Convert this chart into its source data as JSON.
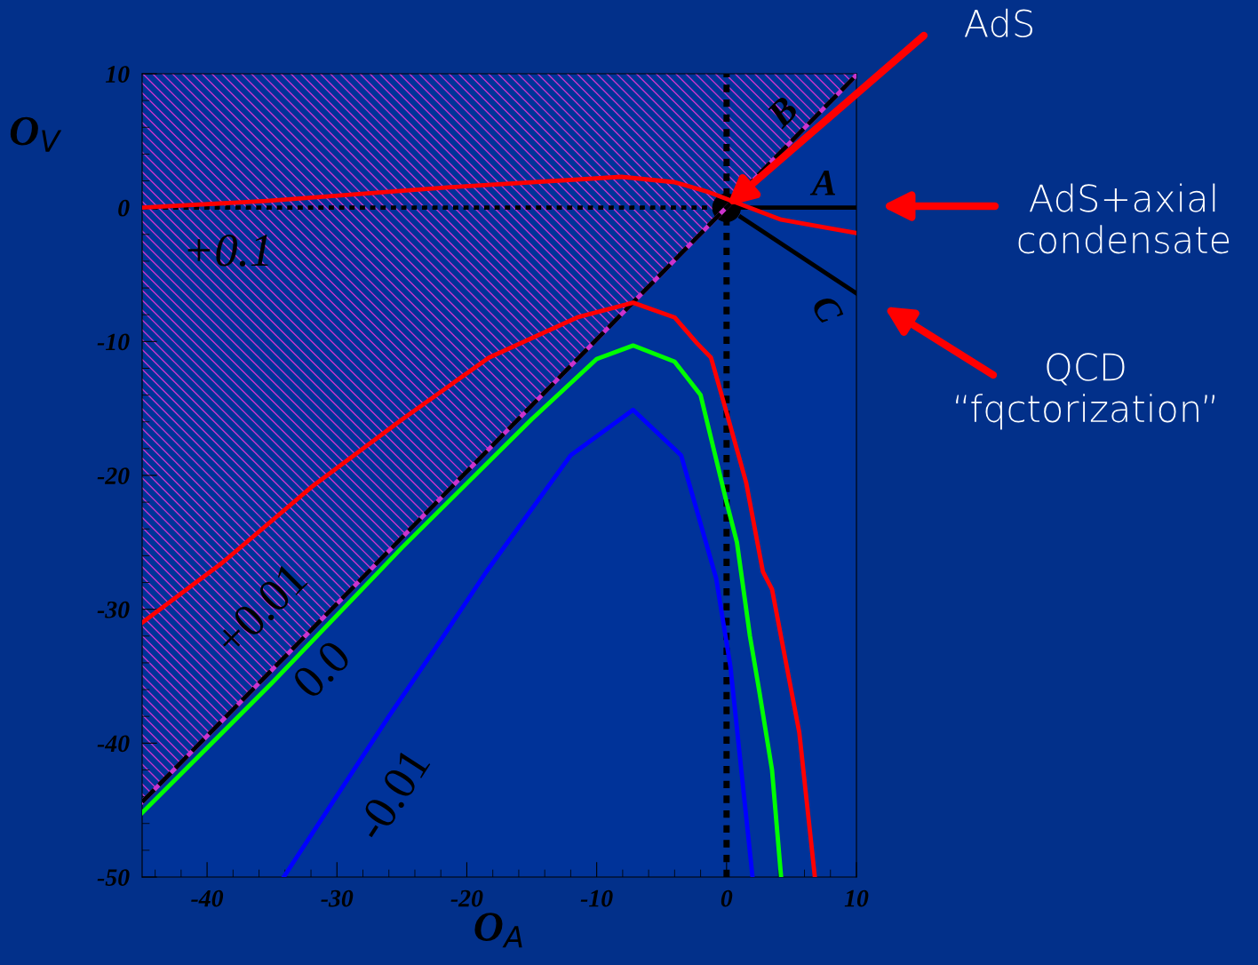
{
  "chart_data": {
    "type": "line",
    "xlabel": "O$_{A}$",
    "ylabel": "O$_{V}$",
    "xlim": [
      -45,
      10
    ],
    "ylim": [
      -50,
      10
    ],
    "xticks": [
      -40,
      -30,
      -20,
      -10,
      0,
      10
    ],
    "yticks": [
      -50,
      -40,
      -30,
      -20,
      -10,
      0,
      10
    ],
    "grid": false,
    "legend": false,
    "series": [
      {
        "color": "#cc33cc",
        "x": [
          -45,
          10
        ],
        "values": [
          -44.4,
          9.9
        ],
        "lower": [
          -44.4,
          9.9
        ],
        "upper": [
          10,
          10
        ]
      },
      {
        "color": "#000000",
        "line_style": "dashed",
        "x": [
          -45,
          10
        ],
        "values": [
          -44.4,
          9.9
        ]
      },
      {
        "color": "#000000",
        "line_style": "dotted",
        "x": [
          -45,
          -1.3
        ],
        "values": [
          0,
          0
        ]
      },
      {
        "color": "#000000",
        "x": [
          1.2,
          10
        ],
        "values": [
          0,
          0
        ]
      },
      {
        "color": "#000000",
        "x": [
          1.1,
          10
        ],
        "values": [
          -0.7,
          -6.4
        ]
      },
      {
        "color": "#ff0000",
        "x": [
          -45,
          -35.4,
          -21.7,
          -8.1,
          -4,
          -1.5,
          4.2,
          10
        ],
        "values": [
          0,
          0.5,
          1.5,
          2.3,
          1.9,
          1.2,
          -0.9,
          -1.9
        ]
      },
      {
        "color": "#ff0000",
        "x": [
          -45,
          -38.8,
          -32,
          -25.1,
          -18.3,
          -11.5,
          -7.2,
          -4,
          -2.3,
          -1.2,
          0,
          1.5,
          2.8,
          3.5,
          5.6,
          6.8
        ],
        "values": [
          -31,
          -26.5,
          -20.9,
          -15.9,
          -11.2,
          -8.2,
          -7.1,
          -8.2,
          -10.1,
          -11.2,
          -15.3,
          -20.5,
          -27.2,
          -28.5,
          -39.2,
          -50
        ]
      },
      {
        "color": "#00ff00",
        "x": [
          -45,
          -35,
          -25,
          -15,
          -10,
          -7.2,
          -4,
          -2,
          0,
          0.8,
          1.8,
          2.5,
          3.5,
          4.2
        ],
        "values": [
          -45.2,
          -35.5,
          -25.4,
          -15.8,
          -11.3,
          -10.3,
          -11.5,
          -14,
          -22,
          -25,
          -32,
          -36,
          -42,
          -50
        ]
      },
      {
        "color": "#0000ff",
        "x": [
          -34.1,
          -26,
          -22,
          -18.5,
          -12,
          -7.2,
          -3.5,
          -0.8,
          0.3,
          2.0
        ],
        "values": [
          -50,
          -38,
          -32.3,
          -27.2,
          -18.5,
          -15.1,
          -18.5,
          -27.7,
          -34.3,
          -50
        ]
      },
      {
        "type": "scatter",
        "color": "#000000",
        "marker": "circle",
        "x": [
          0
        ],
        "values": [
          0
        ]
      }
    ],
    "ref_lines": [
      {
        "axis": "x",
        "value": 0,
        "color": "#000000",
        "line_style": "dotted"
      }
    ],
    "annotations": [
      "+0.1",
      "+0.01",
      "0.0",
      "-0.01",
      "A",
      "B",
      "C",
      "AdS",
      "AdS+axial\ncondensate",
      "QCD\n“fqctorization”"
    ]
  }
}
